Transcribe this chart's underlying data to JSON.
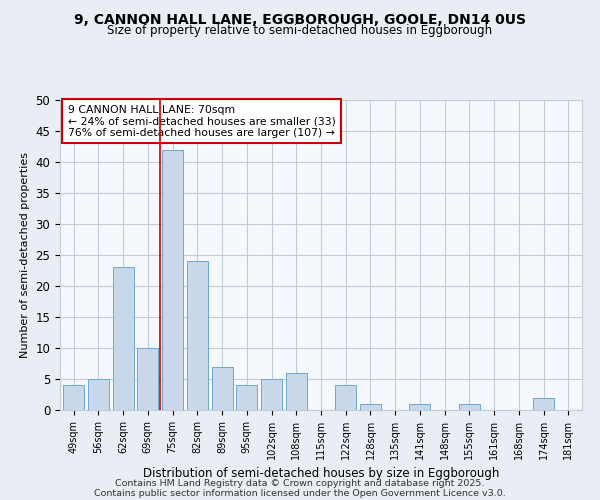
{
  "title1": "9, CANNON HALL LANE, EGGBOROUGH, GOOLE, DN14 0US",
  "title2": "Size of property relative to semi-detached houses in Eggborough",
  "xlabel": "Distribution of semi-detached houses by size in Eggborough",
  "ylabel": "Number of semi-detached properties",
  "categories": [
    "49sqm",
    "56sqm",
    "62sqm",
    "69sqm",
    "75sqm",
    "82sqm",
    "89sqm",
    "95sqm",
    "102sqm",
    "108sqm",
    "115sqm",
    "122sqm",
    "128sqm",
    "135sqm",
    "141sqm",
    "148sqm",
    "155sqm",
    "161sqm",
    "168sqm",
    "174sqm",
    "181sqm"
  ],
  "values": [
    4,
    5,
    23,
    10,
    42,
    24,
    7,
    4,
    5,
    6,
    0,
    4,
    1,
    0,
    1,
    0,
    1,
    0,
    0,
    2,
    0
  ],
  "bar_color": "#c8d8ea",
  "bar_edge_color": "#6aaad4",
  "property_line_index": 3.5,
  "annotation_title": "9 CANNON HALL LANE: 70sqm",
  "annotation_line1": "← 24% of semi-detached houses are smaller (33)",
  "annotation_line2": "76% of semi-detached houses are larger (107) →",
  "annotation_box_color": "#ffffff",
  "annotation_box_edge": "#cc0000",
  "vline_color": "#cc0000",
  "ylim": [
    0,
    50
  ],
  "yticks": [
    0,
    5,
    10,
    15,
    20,
    25,
    30,
    35,
    40,
    45,
    50
  ],
  "footnote1": "Contains HM Land Registry data © Crown copyright and database right 2025.",
  "footnote2": "Contains public sector information licensed under the Open Government Licence v3.0.",
  "bg_color": "#e8eef4",
  "plot_bg_color": "#f5f8fc",
  "grid_color": "#c0ccd8"
}
